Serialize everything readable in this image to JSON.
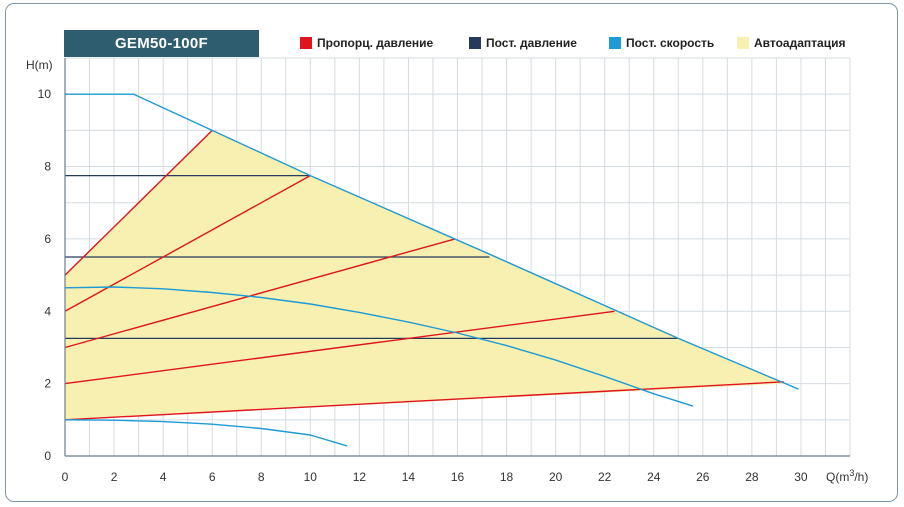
{
  "chart_data": {
    "type": "line",
    "title": "GEM50-100F",
    "xlabel": "Q(m",
    "xlabel_sup": "3",
    "xlabel_tail": "/h)",
    "ylabel": "H(m)",
    "xlim": [
      0,
      32
    ],
    "ylim": [
      0,
      11
    ],
    "x_ticks": [
      0,
      2,
      4,
      6,
      8,
      10,
      12,
      14,
      16,
      18,
      20,
      22,
      24,
      26,
      28,
      30
    ],
    "y_ticks": [
      0,
      2,
      4,
      6,
      8,
      10
    ],
    "grid": true,
    "legend_position": "top",
    "legend": [
      {
        "label": "Пропорц. давление",
        "color": "#e0141e"
      },
      {
        "label": "Пост. давление",
        "color": "#263a5e"
      },
      {
        "label": "Пост. скорость",
        "color": "#1e9ad6"
      },
      {
        "label": "Автоадаптация",
        "color": "#f7f0b0"
      }
    ],
    "area": {
      "name": "Автоадаптация",
      "color": "#f7f0b0",
      "points": [
        [
          0,
          1.0
        ],
        [
          0,
          5.0
        ],
        [
          6.0,
          9.0
        ],
        [
          10.0,
          7.75
        ],
        [
          29.3,
          2.0
        ],
        [
          0,
          1.0
        ]
      ]
    },
    "series": [
      {
        "group": "Пост. скорость",
        "color": "#1e9ad6",
        "points": [
          [
            0,
            10.0
          ],
          [
            2.8,
            10.0
          ],
          [
            6.0,
            9.0
          ],
          [
            10.0,
            7.75
          ],
          [
            17.4,
            5.55
          ],
          [
            25.0,
            3.25
          ],
          [
            29.9,
            1.85
          ]
        ]
      },
      {
        "group": "Пост. скорость",
        "color": "#1e9ad6",
        "points": [
          [
            0,
            4.65
          ],
          [
            2,
            4.67
          ],
          [
            4,
            4.62
          ],
          [
            6,
            4.52
          ],
          [
            8,
            4.38
          ],
          [
            10,
            4.2
          ],
          [
            12,
            3.97
          ],
          [
            14,
            3.7
          ],
          [
            16,
            3.4
          ],
          [
            18,
            3.05
          ],
          [
            20,
            2.65
          ],
          [
            22,
            2.2
          ],
          [
            24,
            1.72
          ],
          [
            25.6,
            1.38
          ]
        ]
      },
      {
        "group": "Пост. скорость",
        "color": "#1e9ad6",
        "points": [
          [
            0,
            1.0
          ],
          [
            2,
            0.99
          ],
          [
            4,
            0.95
          ],
          [
            6,
            0.88
          ],
          [
            8,
            0.76
          ],
          [
            10,
            0.58
          ],
          [
            11.5,
            0.28
          ]
        ]
      },
      {
        "group": "Пропорц. давление",
        "color": "#e0141e",
        "points": [
          [
            0,
            5.0
          ],
          [
            6.0,
            9.0
          ]
        ]
      },
      {
        "group": "Пропорц. давление",
        "color": "#e0141e",
        "points": [
          [
            0,
            4.0
          ],
          [
            10.0,
            7.75
          ]
        ]
      },
      {
        "group": "Пропорц. давление",
        "color": "#e0141e",
        "points": [
          [
            0,
            3.0
          ],
          [
            15.9,
            6.0
          ]
        ]
      },
      {
        "group": "Пропорц. давление",
        "color": "#e0141e",
        "points": [
          [
            0,
            2.0
          ],
          [
            22.4,
            4.0
          ]
        ]
      },
      {
        "group": "Пропорц. давление",
        "color": "#e0141e",
        "points": [
          [
            0,
            1.0
          ],
          [
            29.3,
            2.05
          ]
        ]
      },
      {
        "group": "Пост. давление",
        "color": "#263a5e",
        "points": [
          [
            0,
            7.75
          ],
          [
            10.0,
            7.75
          ]
        ]
      },
      {
        "group": "Пост. давление",
        "color": "#263a5e",
        "points": [
          [
            0,
            5.5
          ],
          [
            17.3,
            5.5
          ]
        ]
      },
      {
        "group": "Пост. давление",
        "color": "#263a5e",
        "points": [
          [
            0,
            3.25
          ],
          [
            25.0,
            3.25
          ]
        ]
      }
    ]
  }
}
